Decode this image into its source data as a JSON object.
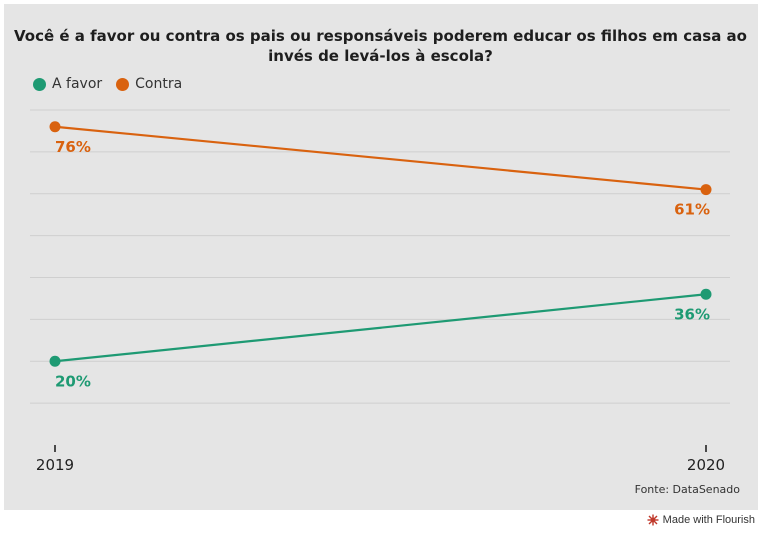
{
  "title": "Você é a favor ou contra os pais ou responsáveis poderem educar os filhos em casa ao invés de levá-los à escola?",
  "legend": [
    {
      "label": "A favor",
      "color": "#1e9a73"
    },
    {
      "label": "Contra",
      "color": "#d9620f"
    }
  ],
  "source": "Fonte: DataSenado",
  "footer": "Made with Flourish",
  "chart_data": {
    "type": "line",
    "x": [
      "2019",
      "2020"
    ],
    "series": [
      {
        "name": "A favor",
        "values": [
          20,
          36
        ],
        "labels": [
          "20%",
          "36%"
        ],
        "color": "#1e9a73"
      },
      {
        "name": "Contra",
        "values": [
          76,
          61
        ],
        "labels": [
          "76%",
          "61%"
        ],
        "color": "#d9620f"
      }
    ],
    "ylim": [
      0,
      80
    ],
    "grid": true,
    "legend_position": "top-left"
  }
}
